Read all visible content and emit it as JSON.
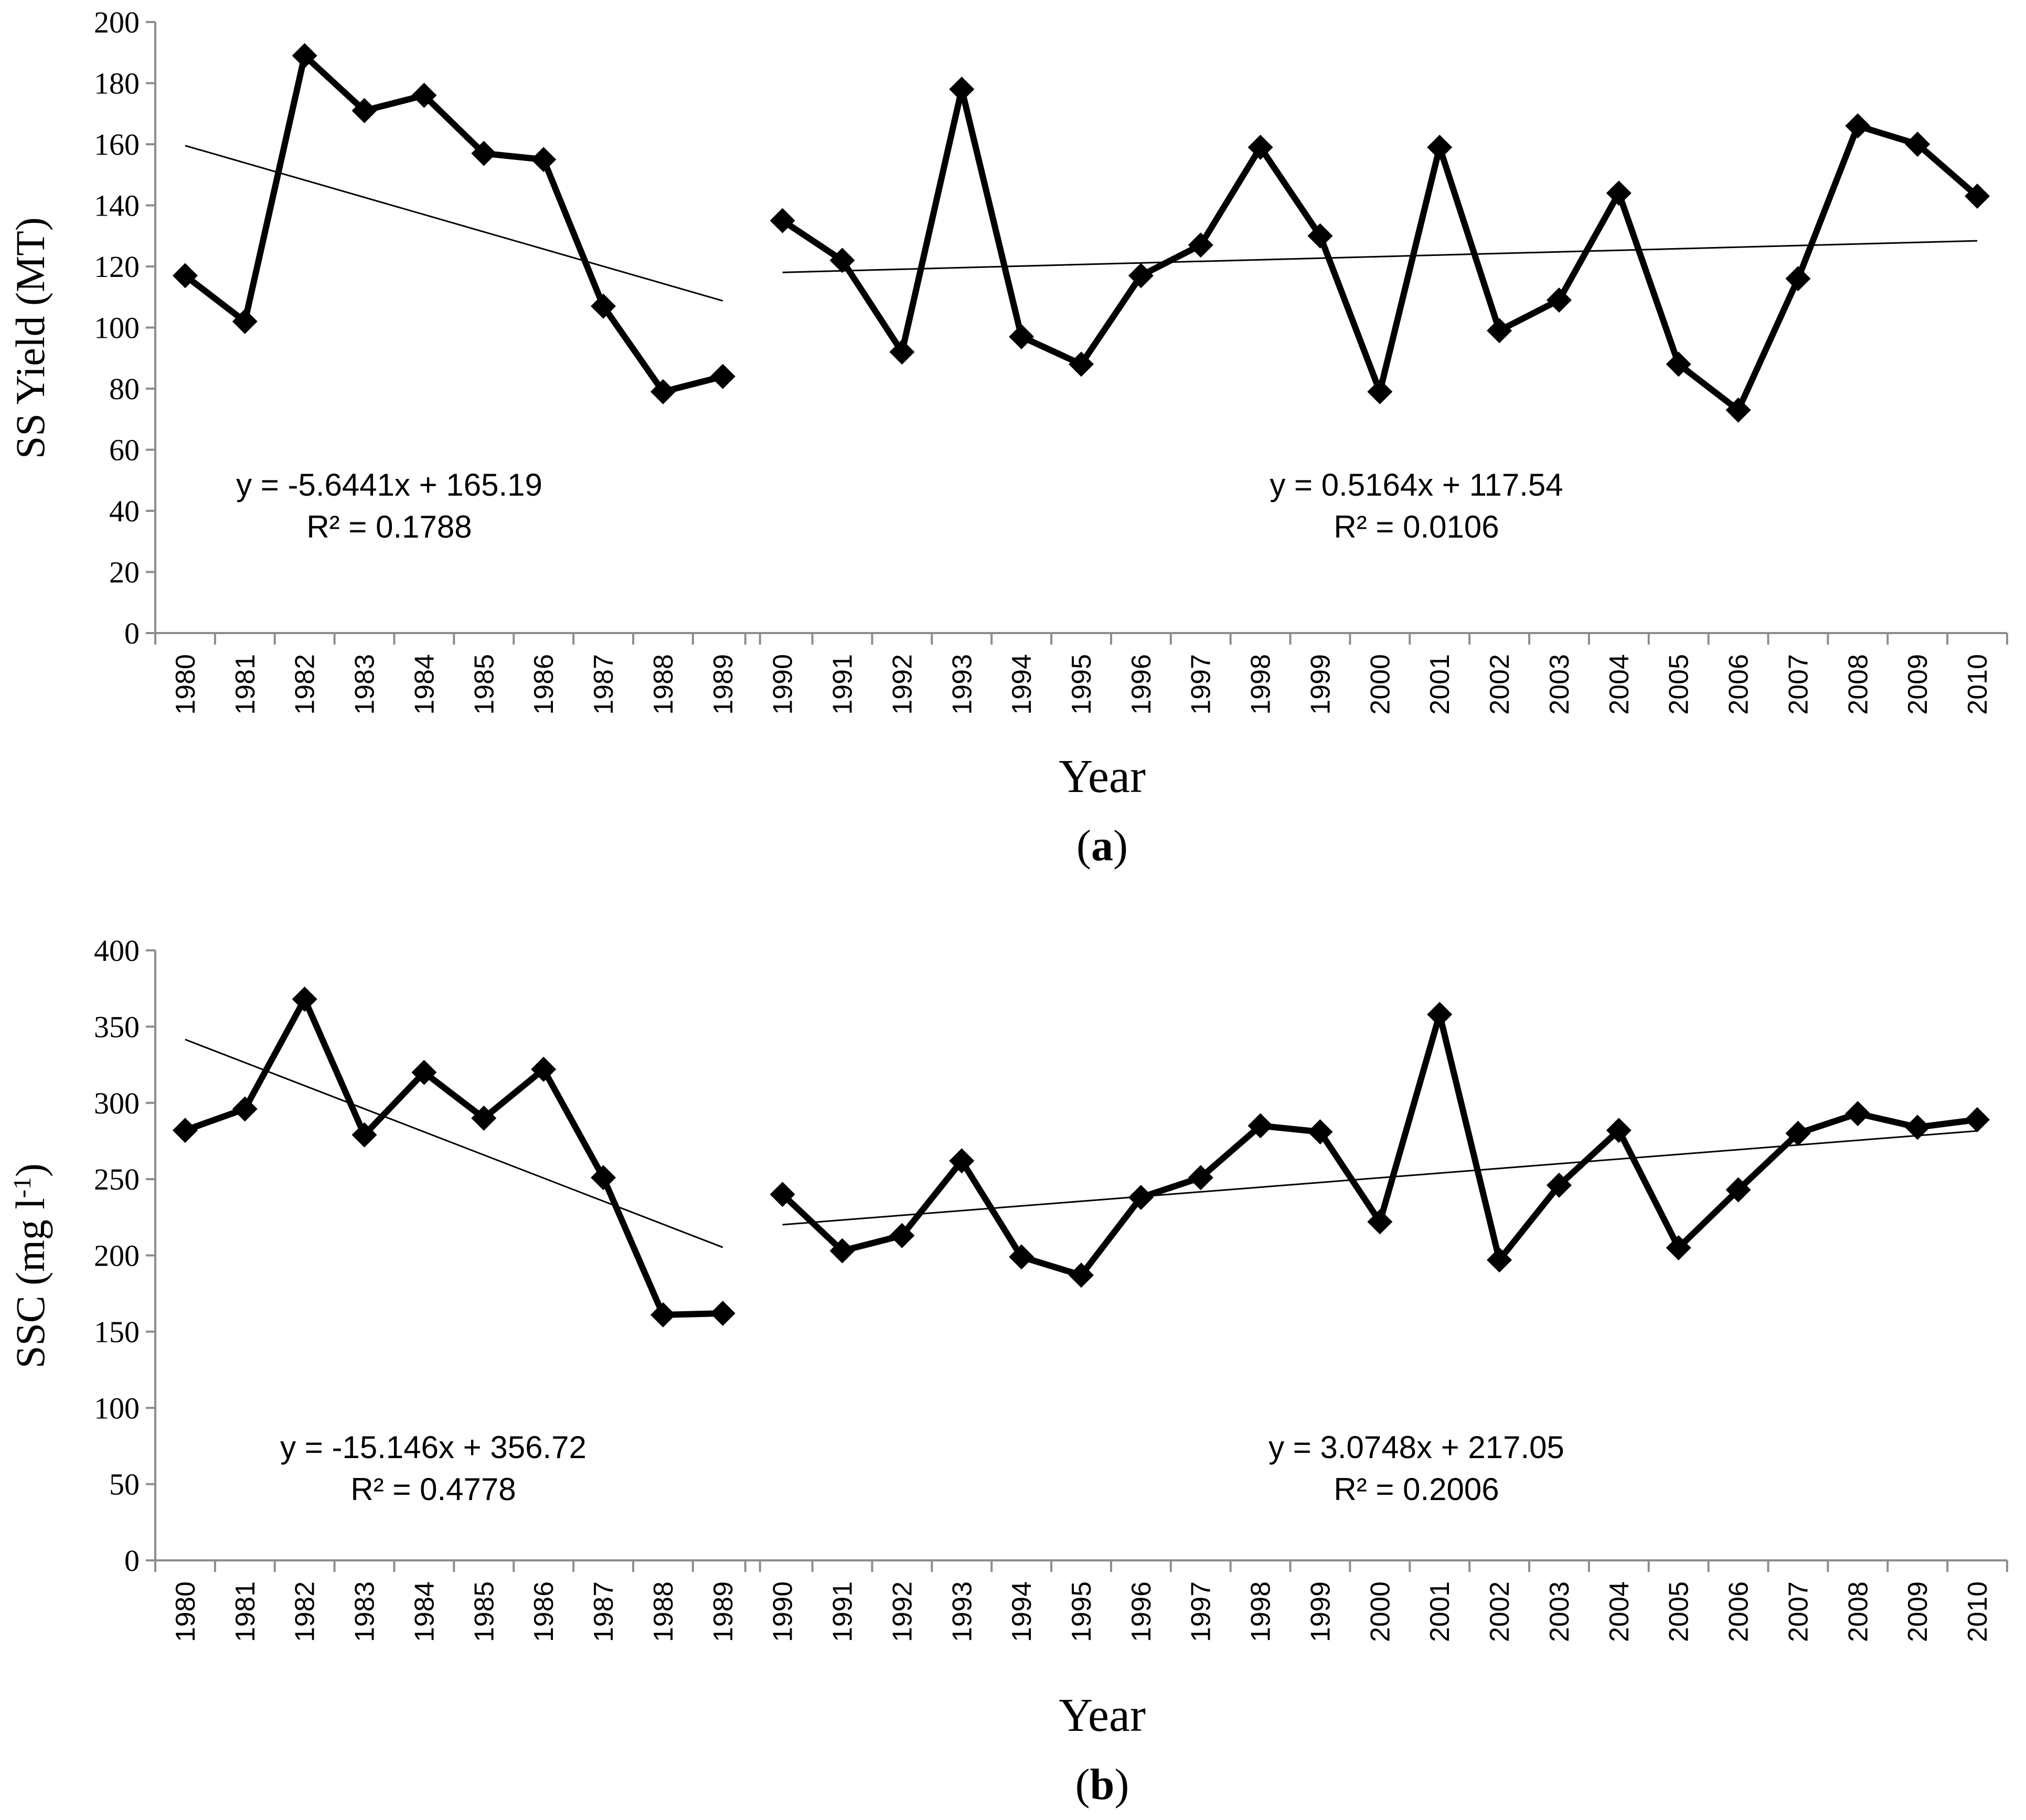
{
  "chart_data": [
    {
      "id": "a",
      "type": "line",
      "panel_label": "a",
      "ylabel": "SS Yield (MT)",
      "xlabel": "Year",
      "ylim": [
        0,
        200
      ],
      "yticks": [
        0,
        20,
        40,
        60,
        80,
        100,
        120,
        140,
        160,
        180,
        200
      ],
      "categories": [
        "1980",
        "1981",
        "1982",
        "1983",
        "1984",
        "1985",
        "1986",
        "1987",
        "1988",
        "1989",
        "1990",
        "1991",
        "1992",
        "1993",
        "1994",
        "1995",
        "1996",
        "1997",
        "1998",
        "1999",
        "2000",
        "2001",
        "2002",
        "2003",
        "2004",
        "2005",
        "2006",
        "2007",
        "2008",
        "2009",
        "2010"
      ],
      "segments": [
        {
          "name": "1980-1989",
          "x": [
            "1980",
            "1981",
            "1982",
            "1983",
            "1984",
            "1985",
            "1986",
            "1987",
            "1988",
            "1989"
          ],
          "values": [
            117,
            102,
            189,
            171,
            176,
            157,
            155,
            107,
            79,
            84
          ],
          "trend": {
            "slope": -5.6441,
            "intercept": 165.19,
            "from": "1980",
            "to": "1989"
          },
          "equation": "y = -5.6441x + 165.19",
          "r2": "R² = 0.1788"
        },
        {
          "name": "1990-2010",
          "x": [
            "1990",
            "1991",
            "1992",
            "1993",
            "1994",
            "1995",
            "1996",
            "1997",
            "1998",
            "1999",
            "2000",
            "2001",
            "2002",
            "2003",
            "2004",
            "2005",
            "2006",
            "2007",
            "2008",
            "2009",
            "2010"
          ],
          "values": [
            135,
            122,
            92,
            178,
            97,
            88,
            117,
            127,
            159,
            130,
            79,
            159,
            99,
            109,
            144,
            88,
            73,
            116,
            166,
            160,
            143
          ],
          "trend": {
            "slope": 0.5164,
            "intercept": 117.54,
            "from": "1990",
            "to": "2010"
          },
          "equation": "y = 0.5164x + 117.54",
          "r2": "R² = 0.0106"
        }
      ]
    },
    {
      "id": "b",
      "type": "line",
      "panel_label": "b",
      "ylabel": "SSC (mg l-1)",
      "xlabel": "Year",
      "ylim": [
        0,
        400
      ],
      "yticks": [
        0,
        50,
        100,
        150,
        200,
        250,
        300,
        350,
        400
      ],
      "categories": [
        "1980",
        "1981",
        "1982",
        "1983",
        "1984",
        "1985",
        "1986",
        "1987",
        "1988",
        "1989",
        "1990",
        "1991",
        "1992",
        "1993",
        "1994",
        "1995",
        "1996",
        "1997",
        "1998",
        "1999",
        "2000",
        "2001",
        "2002",
        "2003",
        "2004",
        "2005",
        "2006",
        "2007",
        "2008",
        "2009",
        "2010"
      ],
      "segments": [
        {
          "name": "1980-1989",
          "x": [
            "1980",
            "1981",
            "1982",
            "1983",
            "1984",
            "1985",
            "1986",
            "1987",
            "1988",
            "1989"
          ],
          "values": [
            282,
            296,
            368,
            279,
            320,
            290,
            322,
            251,
            161,
            162
          ],
          "trend": {
            "slope": -15.146,
            "intercept": 356.72,
            "from": "1980",
            "to": "1989"
          },
          "equation": "y = -15.146x + 356.72",
          "r2": "R² = 0.4778"
        },
        {
          "name": "1990-2010",
          "x": [
            "1990",
            "1991",
            "1992",
            "1993",
            "1994",
            "1995",
            "1996",
            "1997",
            "1998",
            "1999",
            "2000",
            "2001",
            "2002",
            "2003",
            "2004",
            "2005",
            "2006",
            "2007",
            "2008",
            "2009",
            "2010"
          ],
          "values": [
            240,
            203,
            213,
            262,
            199,
            187,
            238,
            251,
            285,
            281,
            222,
            358,
            197,
            246,
            282,
            205,
            243,
            280,
            293,
            284,
            289
          ],
          "trend": {
            "slope": 3.0748,
            "intercept": 217.05,
            "from": "1990",
            "to": "2010"
          },
          "equation": "y = 3.0748x + 217.05",
          "r2": "R² = 0.2006"
        }
      ]
    }
  ]
}
